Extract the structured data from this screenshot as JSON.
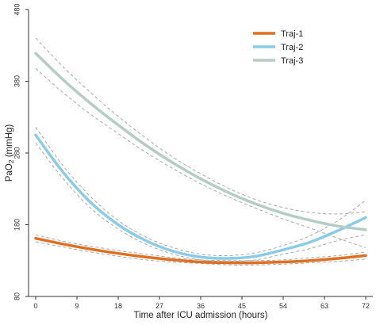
{
  "chart_data": {
    "type": "line",
    "title": "",
    "xlabel": "Time after ICU admission (hours)",
    "ylabel": {
      "prefix": "PaO",
      "sub": "2",
      "suffix": " (mmHg)"
    },
    "xlim": [
      0,
      72
    ],
    "ylim": [
      80,
      480
    ],
    "x_ticks": [
      "0",
      "9",
      "18",
      "27",
      "36",
      "45",
      "54",
      "63",
      "72"
    ],
    "y_ticks": [
      "80",
      "180",
      "280",
      "380",
      "480"
    ],
    "grid": false,
    "legend": "top-right",
    "x": [
      0,
      6,
      12,
      18,
      24,
      30,
      36,
      42,
      48,
      54,
      60,
      66,
      72
    ],
    "series": [
      {
        "name": "Traj-1",
        "color": "#e07020",
        "values": [
          161,
          153,
          146,
          140,
          135,
          131,
          128,
          127,
          127,
          128,
          130,
          133,
          137
        ],
        "ci_upper": [
          166,
          157,
          150,
          144,
          139,
          134,
          131,
          130,
          130,
          131,
          134,
          137,
          142
        ],
        "ci_lower": [
          156,
          149,
          142,
          136,
          131,
          128,
          126,
          124,
          124,
          125,
          127,
          129,
          132
        ]
      },
      {
        "name": "Traj-2",
        "color": "#88cce8",
        "values": [
          305,
          253,
          211,
          180,
          158,
          143,
          135,
          133,
          136,
          145,
          156,
          172,
          190
        ],
        "ci_upper": [
          316,
          262,
          219,
          186,
          163,
          148,
          139,
          137,
          141,
          151,
          165,
          186,
          214
        ],
        "ci_lower": [
          294,
          244,
          203,
          174,
          153,
          139,
          131,
          129,
          131,
          139,
          147,
          158,
          166
        ]
      },
      {
        "name": "Traj-3",
        "color": "#b4cdc2",
        "values": [
          419,
          382,
          349,
          319,
          291,
          266,
          244,
          225,
          209,
          196,
          186,
          178,
          173
        ],
        "ci_upper": [
          440,
          400,
          364,
          331,
          301,
          274,
          251,
          231,
          215,
          204,
          197,
          195,
          198
        ],
        "ci_lower": [
          398,
          364,
          334,
          307,
          281,
          258,
          237,
          219,
          203,
          188,
          175,
          161,
          148
        ]
      }
    ]
  }
}
